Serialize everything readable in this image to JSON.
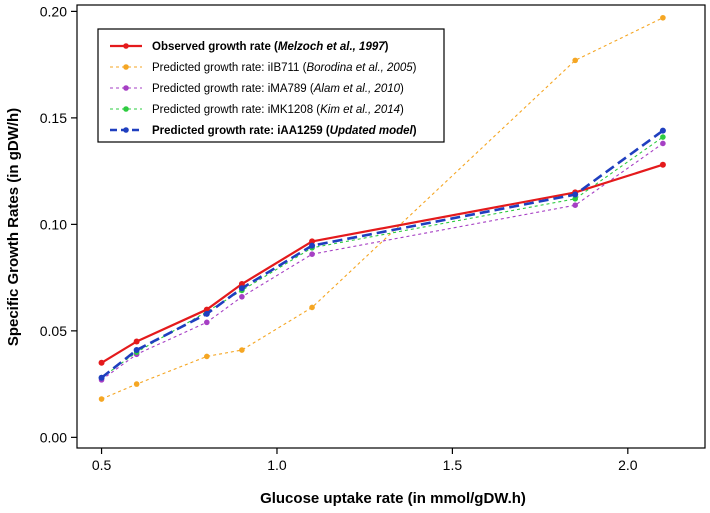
{
  "chart_data": {
    "type": "line",
    "xlabel": "Glucose uptake rate (in mmol/gDW.h)",
    "ylabel": "Specific Growth Rates (in gDW/h)",
    "xlim": [
      0.43,
      2.22
    ],
    "ylim": [
      -0.005,
      0.203
    ],
    "xticks": [
      0.5,
      1.0,
      1.5,
      2.0
    ],
    "xtick_labels": [
      "0.5",
      "1.0",
      "1.5",
      "2.0"
    ],
    "yticks": [
      0.0,
      0.05,
      0.1,
      0.15,
      0.2
    ],
    "ytick_labels": [
      "0.00",
      "0.05",
      "0.10",
      "0.15",
      "0.20"
    ],
    "grid": false,
    "legend_position": "top-left",
    "x": [
      0.5,
      0.6,
      0.8,
      0.9,
      1.1,
      1.85,
      2.1
    ],
    "series": [
      {
        "name": "observed",
        "legend_parts": [
          {
            "text": "Observed growth rate (",
            "bold": true,
            "italic": false
          },
          {
            "text": "Melzoch et al., 1997",
            "bold": true,
            "italic": true
          },
          {
            "text": ")",
            "bold": true,
            "italic": false
          }
        ],
        "color": "#e41a1c",
        "style": "solid",
        "values": [
          0.035,
          0.045,
          0.06,
          0.072,
          0.092,
          0.115,
          0.128
        ]
      },
      {
        "name": "iIB711",
        "legend_parts": [
          {
            "text": "Predicted growth rate: iIB711 (",
            "bold": false,
            "italic": false
          },
          {
            "text": "Borodina et al., 2005",
            "bold": false,
            "italic": true
          },
          {
            "text": ")",
            "bold": false,
            "italic": false
          }
        ],
        "color": "#f5a623",
        "style": "dotted",
        "values": [
          0.018,
          0.025,
          0.038,
          0.041,
          0.061,
          0.177,
          0.197
        ]
      },
      {
        "name": "iMA789",
        "legend_parts": [
          {
            "text": "Predicted growth rate: iMA789 (",
            "bold": false,
            "italic": false
          },
          {
            "text": "Alam et al., 2010",
            "bold": false,
            "italic": true
          },
          {
            "text": ")",
            "bold": false,
            "italic": false
          }
        ],
        "color": "#a63fc4",
        "style": "dotted",
        "values": [
          0.027,
          0.039,
          0.054,
          0.066,
          0.086,
          0.109,
          0.138
        ]
      },
      {
        "name": "iMK1208",
        "legend_parts": [
          {
            "text": "Predicted growth rate: iMK1208 (",
            "bold": false,
            "italic": false
          },
          {
            "text": "Kim et al., 2014",
            "bold": false,
            "italic": true
          },
          {
            "text": ")",
            "bold": false,
            "italic": false
          }
        ],
        "color": "#2ecc40",
        "style": "dotted",
        "values": [
          0.028,
          0.04,
          0.059,
          0.069,
          0.089,
          0.112,
          0.141
        ]
      },
      {
        "name": "iAA1259",
        "legend_parts": [
          {
            "text": "Predicted growth rate: iAA1259 (",
            "bold": true,
            "italic": false
          },
          {
            "text": "Updated model",
            "bold": true,
            "italic": true
          },
          {
            "text": ")",
            "bold": true,
            "italic": false
          }
        ],
        "color": "#1f3fbf",
        "style": "dashed",
        "values": [
          0.028,
          0.041,
          0.058,
          0.07,
          0.09,
          0.114,
          0.144
        ]
      }
    ]
  }
}
